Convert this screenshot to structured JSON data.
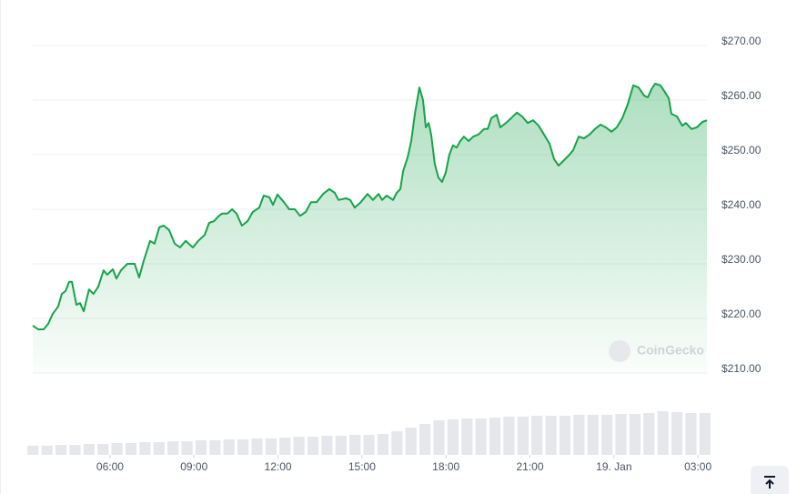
{
  "chart_data": {
    "type": "area",
    "color": "#16a34a",
    "grid": true,
    "watermark": "CoinGecko",
    "xlim": [
      3.24,
      27.32
    ],
    "xticks": [
      {
        "value": 6,
        "label": "06:00"
      },
      {
        "value": 9,
        "label": "09:00"
      },
      {
        "value": 12,
        "label": "12:00"
      },
      {
        "value": 15,
        "label": "15:00"
      },
      {
        "value": 18,
        "label": "18:00"
      },
      {
        "value": 21,
        "label": "21:00"
      },
      {
        "value": 24,
        "label": "19. Jan"
      },
      {
        "value": 27,
        "label": "03:00"
      }
    ],
    "ylim": [
      210,
      270
    ],
    "yticks": [
      {
        "value": 270,
        "label": "$270.00"
      },
      {
        "value": 260,
        "label": "$260.00"
      },
      {
        "value": 250,
        "label": "$250.00"
      },
      {
        "value": 240,
        "label": "$240.00"
      },
      {
        "value": 230,
        "label": "$230.00"
      },
      {
        "value": 220,
        "label": "$220.00"
      },
      {
        "value": 210,
        "label": "$210.00"
      }
    ],
    "x": [
      3.24,
      3.43,
      3.63,
      3.79,
      3.95,
      4.15,
      4.28,
      4.41,
      4.54,
      4.64,
      4.8,
      4.93,
      5.06,
      5.25,
      5.41,
      5.58,
      5.77,
      5.9,
      6.1,
      6.23,
      6.39,
      6.62,
      6.88,
      7.04,
      7.2,
      7.43,
      7.59,
      7.76,
      7.92,
      8.11,
      8.31,
      8.5,
      8.7,
      8.96,
      9.15,
      9.38,
      9.54,
      9.71,
      9.87,
      10.0,
      10.19,
      10.36,
      10.52,
      10.71,
      10.91,
      11.1,
      11.33,
      11.49,
      11.69,
      11.82,
      11.98,
      12.21,
      12.4,
      12.6,
      12.79,
      12.99,
      13.18,
      13.38,
      13.61,
      13.83,
      14.03,
      14.16,
      14.42,
      14.58,
      14.74,
      14.94,
      15.2,
      15.39,
      15.59,
      15.72,
      15.88,
      16.11,
      16.24,
      16.37,
      16.47,
      16.63,
      16.76,
      16.89,
      17.05,
      17.18,
      17.28,
      17.38,
      17.47,
      17.6,
      17.73,
      17.86,
      17.99,
      18.12,
      18.25,
      18.38,
      18.51,
      18.64,
      18.81,
      18.97,
      19.16,
      19.36,
      19.49,
      19.62,
      19.81,
      19.94,
      20.14,
      20.33,
      20.53,
      20.72,
      20.92,
      21.11,
      21.31,
      21.5,
      21.7,
      21.86,
      22.02,
      22.22,
      22.41,
      22.54,
      22.74,
      22.93,
      23.13,
      23.32,
      23.52,
      23.71,
      23.91,
      24.1,
      24.3,
      24.49,
      24.69,
      24.88,
      25.08,
      25.21,
      25.34,
      25.47,
      25.66,
      25.79,
      25.96,
      26.05,
      26.25,
      26.44,
      26.57,
      26.77,
      26.96,
      27.16,
      27.32
    ],
    "values": [
      218.7,
      218.0,
      218.0,
      219.0,
      220.8,
      222.2,
      224.5,
      225.0,
      226.7,
      226.7,
      222.5,
      222.8,
      221.3,
      225.3,
      224.5,
      225.8,
      228.8,
      228.0,
      229.0,
      227.3,
      228.8,
      230.0,
      230.0,
      227.5,
      230.5,
      234.2,
      233.7,
      236.7,
      237.0,
      236.2,
      233.7,
      233.0,
      234.2,
      233.0,
      234.2,
      235.3,
      237.5,
      237.8,
      238.7,
      239.2,
      239.2,
      240.0,
      239.2,
      237.0,
      237.8,
      239.5,
      240.3,
      242.5,
      242.2,
      240.8,
      242.7,
      241.3,
      240.0,
      240.0,
      238.8,
      239.5,
      241.3,
      241.3,
      242.8,
      243.7,
      243.0,
      241.7,
      242.0,
      241.7,
      240.3,
      241.2,
      242.8,
      241.7,
      242.8,
      241.7,
      242.5,
      241.7,
      243.0,
      243.7,
      247.0,
      249.5,
      252.5,
      257.5,
      262.3,
      260.0,
      255.0,
      255.8,
      253.7,
      248.3,
      245.8,
      245.0,
      246.7,
      250.0,
      251.7,
      251.3,
      252.5,
      253.3,
      252.5,
      253.3,
      253.7,
      254.7,
      254.7,
      256.7,
      257.3,
      255.0,
      255.8,
      256.7,
      257.7,
      257.0,
      255.8,
      256.3,
      255.3,
      253.7,
      252.0,
      249.2,
      248.0,
      249.0,
      250.0,
      250.8,
      253.3,
      253.0,
      253.7,
      254.7,
      255.5,
      255.0,
      254.2,
      255.0,
      256.7,
      259.2,
      262.7,
      262.3,
      260.8,
      260.5,
      262.0,
      263.0,
      262.7,
      261.7,
      260.3,
      257.5,
      257.0,
      255.3,
      255.8,
      254.7,
      255.0,
      256.0,
      256.3
    ],
    "volume": {
      "color": "#e5e7eb",
      "ylim": [
        0,
        50
      ],
      "x": [
        3.25,
        3.75,
        4.25,
        4.75,
        5.25,
        5.75,
        6.25,
        6.75,
        7.25,
        7.75,
        8.25,
        8.75,
        9.25,
        9.75,
        10.25,
        10.75,
        11.25,
        11.75,
        12.25,
        12.75,
        13.25,
        13.75,
        14.25,
        14.75,
        15.25,
        15.75,
        16.25,
        16.75,
        17.25,
        17.75,
        18.25,
        18.75,
        19.25,
        19.75,
        20.25,
        20.75,
        21.25,
        21.75,
        22.25,
        22.75,
        23.25,
        23.75,
        24.25,
        24.75,
        25.25,
        25.75,
        26.25,
        26.75,
        27.25
      ],
      "values": [
        10,
        10,
        11,
        11,
        12,
        12,
        13,
        13,
        14,
        14,
        15,
        15,
        16,
        16,
        17,
        17,
        18,
        18,
        19,
        20,
        20,
        21,
        21,
        22,
        22,
        23,
        26,
        30,
        34,
        38,
        39,
        40,
        40,
        41,
        42,
        42,
        43,
        43,
        43,
        44,
        44,
        44,
        45,
        45,
        46,
        48,
        47,
        46,
        46
      ]
    }
  }
}
